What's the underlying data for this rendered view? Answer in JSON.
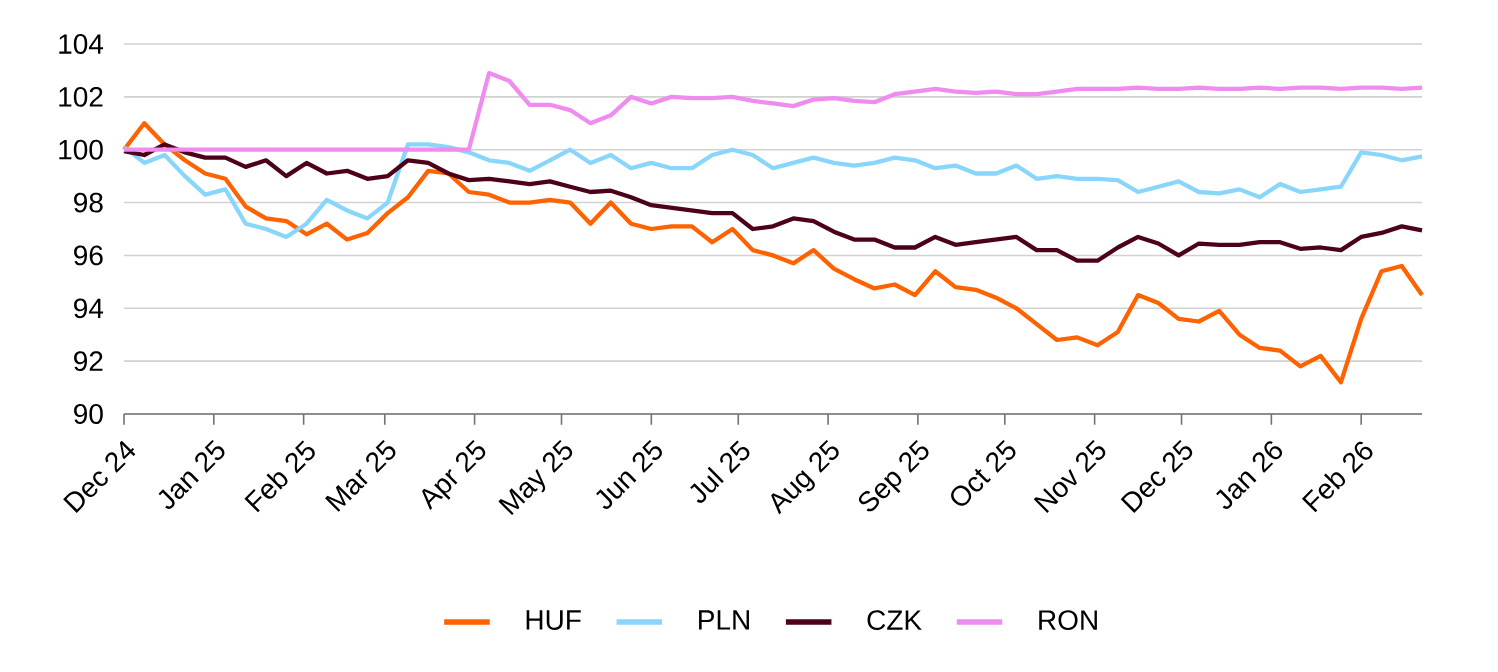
{
  "chart_data": {
    "type": "line",
    "x": [
      "2024-12-01",
      "2024-12-08",
      "2024-12-15",
      "2024-12-22",
      "2024-12-29",
      "2025-01-05",
      "2025-01-12",
      "2025-01-19",
      "2025-01-26",
      "2025-02-02",
      "2025-02-09",
      "2025-02-16",
      "2025-02-23",
      "2025-03-02",
      "2025-03-09",
      "2025-03-16",
      "2025-03-23",
      "2025-03-30",
      "2025-04-06",
      "2025-04-13",
      "2025-04-20",
      "2025-04-27",
      "2025-05-04",
      "2025-05-11",
      "2025-05-18",
      "2025-05-25",
      "2025-06-01",
      "2025-06-08",
      "2025-06-15",
      "2025-06-22",
      "2025-06-29",
      "2025-07-06",
      "2025-07-13",
      "2025-07-20",
      "2025-07-27",
      "2025-08-03",
      "2025-08-10",
      "2025-08-17",
      "2025-08-24",
      "2025-08-31",
      "2025-09-07",
      "2025-09-14",
      "2025-09-21",
      "2025-09-28",
      "2025-10-05",
      "2025-10-12",
      "2025-10-19",
      "2025-10-26",
      "2025-11-02",
      "2025-11-09",
      "2025-11-16",
      "2025-11-23",
      "2025-11-30",
      "2025-12-07",
      "2025-12-14",
      "2025-12-21",
      "2025-12-28",
      "2026-01-04",
      "2026-01-11",
      "2026-01-18",
      "2026-01-25",
      "2026-02-01",
      "2026-02-08",
      "2026-02-15",
      "2026-02-22"
    ],
    "series": [
      {
        "name": "HUF",
        "color": "#ff6200",
        "values": [
          100.0,
          101.0,
          100.2,
          99.6,
          99.1,
          98.9,
          97.85,
          97.4,
          97.3,
          96.8,
          97.2,
          96.6,
          96.85,
          97.6,
          98.2,
          99.2,
          99.1,
          98.4,
          98.3,
          98.0,
          98.0,
          98.1,
          98.0,
          97.2,
          98.0,
          97.2,
          97.0,
          97.1,
          97.1,
          96.5,
          97.0,
          96.2,
          96.0,
          95.7,
          96.2,
          95.5,
          95.1,
          94.75,
          94.9,
          94.5,
          95.4,
          94.8,
          94.7,
          94.4,
          94.0,
          93.4,
          92.8,
          92.9,
          92.6,
          93.1,
          94.5,
          94.2,
          93.6,
          93.5,
          93.9,
          93.0,
          92.5,
          92.4,
          91.8,
          92.2,
          91.2,
          93.6,
          95.4,
          95.6,
          94.5
        ]
      },
      {
        "name": "PLN",
        "color": "#89d6fd",
        "values": [
          100.1,
          99.5,
          99.8,
          99.0,
          98.3,
          98.5,
          97.2,
          97.0,
          96.7,
          97.2,
          98.1,
          97.7,
          97.4,
          98.0,
          100.2,
          100.2,
          100.1,
          99.9,
          99.6,
          99.5,
          99.2,
          99.6,
          100.0,
          99.5,
          99.8,
          99.3,
          99.5,
          99.3,
          99.3,
          99.8,
          100.0,
          99.8,
          99.3,
          99.5,
          99.7,
          99.5,
          99.4,
          99.5,
          99.7,
          99.6,
          99.3,
          99.4,
          99.1,
          99.1,
          99.4,
          98.9,
          99.0,
          98.9,
          98.9,
          98.85,
          98.4,
          98.6,
          98.8,
          98.4,
          98.35,
          98.5,
          98.2,
          98.7,
          98.4,
          98.5,
          98.6,
          99.9,
          99.8,
          99.6,
          99.75
        ]
      },
      {
        "name": "CZK",
        "color": "#4c0019",
        "values": [
          99.95,
          99.8,
          100.2,
          99.9,
          99.7,
          99.7,
          99.35,
          99.6,
          99.0,
          99.5,
          99.1,
          99.2,
          98.9,
          99.0,
          99.6,
          99.5,
          99.1,
          98.85,
          98.9,
          98.8,
          98.7,
          98.8,
          98.6,
          98.4,
          98.45,
          98.2,
          97.9,
          97.8,
          97.7,
          97.6,
          97.6,
          97.0,
          97.1,
          97.4,
          97.3,
          96.9,
          96.6,
          96.6,
          96.3,
          96.3,
          96.7,
          96.4,
          96.5,
          96.6,
          96.7,
          96.2,
          96.2,
          95.8,
          95.8,
          96.3,
          96.7,
          96.45,
          96.0,
          96.45,
          96.4,
          96.4,
          96.5,
          96.5,
          96.25,
          96.3,
          96.2,
          96.7,
          96.85,
          97.1,
          96.95
        ]
      },
      {
        "name": "RON",
        "color": "#f08cf0",
        "values": [
          100.0,
          100.0,
          100.0,
          100.0,
          100.0,
          100.0,
          100.0,
          100.0,
          100.0,
          100.0,
          100.0,
          100.0,
          100.0,
          100.0,
          100.0,
          100.0,
          100.0,
          100.0,
          102.9,
          102.6,
          101.7,
          101.7,
          101.5,
          101.0,
          101.3,
          102.0,
          101.75,
          102.0,
          101.95,
          101.95,
          102.0,
          101.85,
          101.75,
          101.65,
          101.9,
          101.95,
          101.85,
          101.8,
          102.1,
          102.2,
          102.3,
          102.2,
          102.15,
          102.2,
          102.1,
          102.1,
          102.2,
          102.3,
          102.3,
          102.3,
          102.35,
          102.3,
          102.3,
          102.35,
          102.3,
          102.3,
          102.35,
          102.3,
          102.35,
          102.35,
          102.3,
          102.35,
          102.35,
          102.3,
          102.35
        ]
      }
    ],
    "xlim": [
      "2024-12-01",
      "2026-02-22"
    ],
    "xticks": [
      {
        "value": "2024-12-01",
        "label": "Dec 24"
      },
      {
        "value": "2025-01-01",
        "label": "Jan 25"
      },
      {
        "value": "2025-02-01",
        "label": "Feb 25"
      },
      {
        "value": "2025-03-01",
        "label": "Mar 25"
      },
      {
        "value": "2025-04-01",
        "label": "Apr 25"
      },
      {
        "value": "2025-05-01",
        "label": "May 25"
      },
      {
        "value": "2025-06-01",
        "label": "Jun 25"
      },
      {
        "value": "2025-07-01",
        "label": "Jul 25"
      },
      {
        "value": "2025-08-01",
        "label": "Aug 25"
      },
      {
        "value": "2025-09-01",
        "label": "Sep 25"
      },
      {
        "value": "2025-10-01",
        "label": "Oct 25"
      },
      {
        "value": "2025-11-01",
        "label": "Nov 25"
      },
      {
        "value": "2025-12-01",
        "label": "Dec 25"
      },
      {
        "value": "2026-01-01",
        "label": "Jan 26"
      },
      {
        "value": "2026-02-01",
        "label": "Feb 26"
      }
    ],
    "ylim": [
      90,
      104
    ],
    "yticks": [
      90,
      92,
      94,
      96,
      98,
      100,
      102,
      104
    ],
    "grid": "y",
    "legend": "bottom"
  }
}
